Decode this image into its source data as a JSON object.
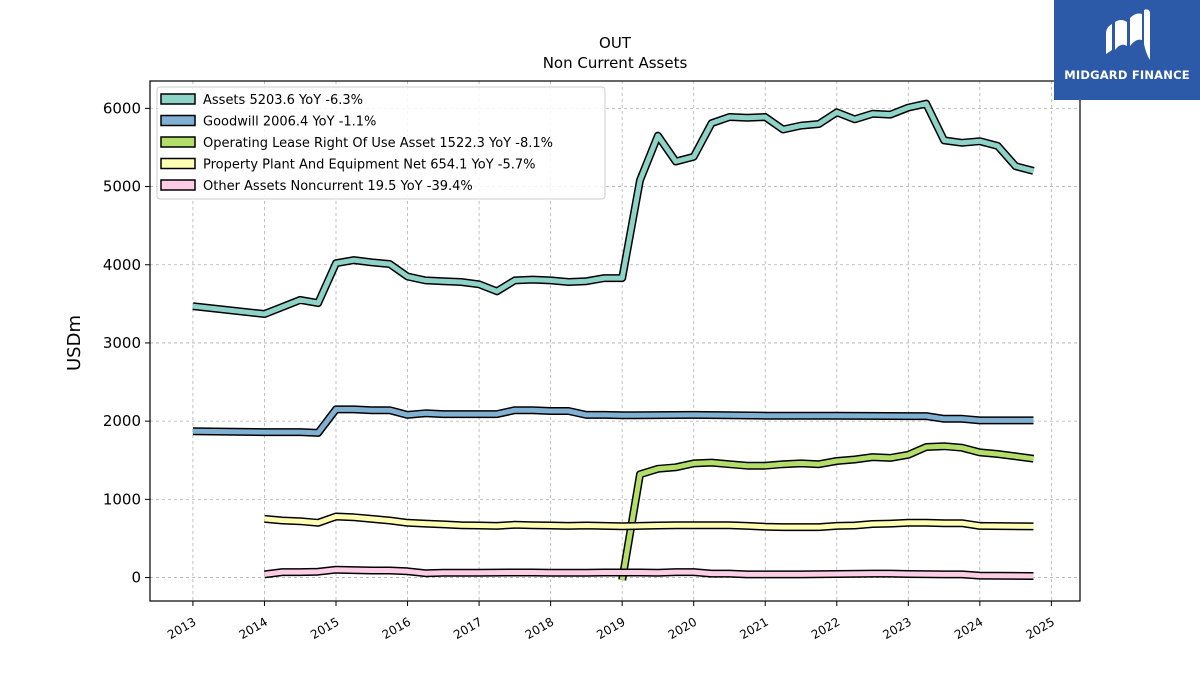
{
  "chart_data": {
    "type": "line",
    "title": "OUT",
    "subtitle": "Non Current  Assets",
    "ylabel": "USDm",
    "xlabel": "",
    "xlim": [
      2012.4,
      2025.4
    ],
    "ylim": [
      -300,
      6350
    ],
    "x_ticks": [
      "2013",
      "2014",
      "2015",
      "2016",
      "2017",
      "2018",
      "2019",
      "2020",
      "2021",
      "2022",
      "2023",
      "2024",
      "2025"
    ],
    "y_ticks": [
      "0",
      "1000",
      "2000",
      "3000",
      "4000",
      "5000",
      "6000"
    ],
    "grid": true,
    "legend_position": "top-left",
    "series": [
      {
        "name": "Assets  5203.6 YoY -6.3%",
        "color": "#8dd3c7",
        "points": [
          [
            2013.0,
            3470
          ],
          [
            2014.0,
            3370
          ],
          [
            2014.25,
            3460
          ],
          [
            2014.5,
            3550
          ],
          [
            2014.75,
            3510
          ],
          [
            2015.0,
            4020
          ],
          [
            2015.25,
            4060
          ],
          [
            2015.5,
            4030
          ],
          [
            2015.75,
            4010
          ],
          [
            2016.0,
            3850
          ],
          [
            2016.25,
            3800
          ],
          [
            2016.5,
            3790
          ],
          [
            2016.75,
            3780
          ],
          [
            2017.0,
            3750
          ],
          [
            2017.25,
            3660
          ],
          [
            2017.5,
            3800
          ],
          [
            2017.75,
            3810
          ],
          [
            2018.0,
            3800
          ],
          [
            2018.25,
            3780
          ],
          [
            2018.5,
            3790
          ],
          [
            2018.75,
            3830
          ],
          [
            2019.0,
            3830
          ],
          [
            2019.25,
            5080
          ],
          [
            2019.5,
            5650
          ],
          [
            2019.75,
            5320
          ],
          [
            2020.0,
            5380
          ],
          [
            2020.25,
            5810
          ],
          [
            2020.5,
            5890
          ],
          [
            2020.75,
            5880
          ],
          [
            2021.0,
            5890
          ],
          [
            2021.25,
            5730
          ],
          [
            2021.5,
            5780
          ],
          [
            2021.75,
            5800
          ],
          [
            2022.0,
            5950
          ],
          [
            2022.25,
            5860
          ],
          [
            2022.5,
            5930
          ],
          [
            2022.75,
            5920
          ],
          [
            2023.0,
            6010
          ],
          [
            2023.25,
            6060
          ],
          [
            2023.5,
            5590
          ],
          [
            2023.75,
            5560
          ],
          [
            2024.0,
            5580
          ],
          [
            2024.25,
            5520
          ],
          [
            2024.5,
            5260
          ],
          [
            2024.75,
            5200
          ]
        ]
      },
      {
        "name": "Goodwill  2006.4 YoY -1.1%",
        "color": "#80b1d3",
        "points": [
          [
            2013.0,
            1870
          ],
          [
            2014.0,
            1860
          ],
          [
            2014.5,
            1860
          ],
          [
            2014.75,
            1850
          ],
          [
            2015.0,
            2150
          ],
          [
            2015.25,
            2150
          ],
          [
            2015.5,
            2140
          ],
          [
            2015.75,
            2140
          ],
          [
            2016.0,
            2080
          ],
          [
            2016.25,
            2100
          ],
          [
            2016.5,
            2090
          ],
          [
            2016.75,
            2090
          ],
          [
            2017.0,
            2090
          ],
          [
            2017.25,
            2090
          ],
          [
            2017.5,
            2140
          ],
          [
            2017.75,
            2140
          ],
          [
            2018.0,
            2130
          ],
          [
            2018.25,
            2130
          ],
          [
            2018.5,
            2080
          ],
          [
            2018.75,
            2080
          ],
          [
            2019.0,
            2075
          ],
          [
            2020.0,
            2080
          ],
          [
            2020.5,
            2075
          ],
          [
            2021.0,
            2070
          ],
          [
            2022.0,
            2070
          ],
          [
            2023.0,
            2065
          ],
          [
            2023.25,
            2065
          ],
          [
            2023.5,
            2030
          ],
          [
            2023.75,
            2030
          ],
          [
            2024.0,
            2010
          ],
          [
            2024.75,
            2010
          ]
        ]
      },
      {
        "name": "Operating Lease Right Of Use Asset  1522.3 YoY -8.1%",
        "color": "#b3de69",
        "points": [
          [
            2019.0,
            -30
          ],
          [
            2019.25,
            1320
          ],
          [
            2019.5,
            1390
          ],
          [
            2019.75,
            1410
          ],
          [
            2020.0,
            1460
          ],
          [
            2020.25,
            1470
          ],
          [
            2020.5,
            1450
          ],
          [
            2020.75,
            1430
          ],
          [
            2021.0,
            1430
          ],
          [
            2021.25,
            1450
          ],
          [
            2021.5,
            1460
          ],
          [
            2021.75,
            1450
          ],
          [
            2022.0,
            1490
          ],
          [
            2022.25,
            1510
          ],
          [
            2022.5,
            1540
          ],
          [
            2022.75,
            1530
          ],
          [
            2023.0,
            1570
          ],
          [
            2023.25,
            1670
          ],
          [
            2023.5,
            1680
          ],
          [
            2023.75,
            1660
          ],
          [
            2024.0,
            1600
          ],
          [
            2024.25,
            1580
          ],
          [
            2024.5,
            1550
          ],
          [
            2024.75,
            1520
          ]
        ]
      },
      {
        "name": "Property Plant And Equipment Net  654.1 YoY -5.7%",
        "color": "#ffffb3",
        "points": [
          [
            2014.0,
            750
          ],
          [
            2014.25,
            730
          ],
          [
            2014.5,
            720
          ],
          [
            2014.75,
            700
          ],
          [
            2015.0,
            780
          ],
          [
            2015.25,
            770
          ],
          [
            2015.5,
            750
          ],
          [
            2015.75,
            730
          ],
          [
            2016.0,
            700
          ],
          [
            2016.25,
            690
          ],
          [
            2016.5,
            680
          ],
          [
            2016.75,
            670
          ],
          [
            2017.0,
            665
          ],
          [
            2017.25,
            660
          ],
          [
            2017.5,
            675
          ],
          [
            2017.75,
            670
          ],
          [
            2018.0,
            665
          ],
          [
            2018.25,
            660
          ],
          [
            2018.5,
            665
          ],
          [
            2018.75,
            660
          ],
          [
            2019.0,
            655
          ],
          [
            2019.25,
            660
          ],
          [
            2019.5,
            665
          ],
          [
            2019.75,
            670
          ],
          [
            2020.0,
            670
          ],
          [
            2020.5,
            670
          ],
          [
            2020.75,
            660
          ],
          [
            2021.0,
            650
          ],
          [
            2021.25,
            645
          ],
          [
            2021.5,
            645
          ],
          [
            2021.75,
            645
          ],
          [
            2022.0,
            660
          ],
          [
            2022.25,
            665
          ],
          [
            2022.5,
            685
          ],
          [
            2022.75,
            690
          ],
          [
            2023.0,
            700
          ],
          [
            2023.25,
            700
          ],
          [
            2023.5,
            695
          ],
          [
            2023.75,
            695
          ],
          [
            2024.0,
            660
          ],
          [
            2024.75,
            654
          ]
        ]
      },
      {
        "name": "Other Assets Noncurrent  19.5 YoY -39.4%",
        "color": "#fccde5",
        "points": [
          [
            2014.0,
            40
          ],
          [
            2014.25,
            70
          ],
          [
            2014.5,
            70
          ],
          [
            2014.75,
            75
          ],
          [
            2015.0,
            100
          ],
          [
            2015.25,
            95
          ],
          [
            2015.5,
            90
          ],
          [
            2015.75,
            90
          ],
          [
            2016.0,
            80
          ],
          [
            2016.25,
            55
          ],
          [
            2016.5,
            60
          ],
          [
            2016.75,
            60
          ],
          [
            2017.0,
            60
          ],
          [
            2017.5,
            65
          ],
          [
            2017.75,
            65
          ],
          [
            2018.0,
            60
          ],
          [
            2018.5,
            60
          ],
          [
            2018.75,
            65
          ],
          [
            2019.0,
            65
          ],
          [
            2019.25,
            65
          ],
          [
            2019.5,
            60
          ],
          [
            2019.75,
            70
          ],
          [
            2020.0,
            70
          ],
          [
            2020.25,
            50
          ],
          [
            2020.5,
            50
          ],
          [
            2020.75,
            40
          ],
          [
            2021.0,
            40
          ],
          [
            2021.5,
            40
          ],
          [
            2022.0,
            45
          ],
          [
            2022.5,
            50
          ],
          [
            2022.75,
            50
          ],
          [
            2023.0,
            45
          ],
          [
            2023.5,
            40
          ],
          [
            2023.75,
            40
          ],
          [
            2024.0,
            25
          ],
          [
            2024.75,
            20
          ]
        ]
      }
    ]
  },
  "logo": {
    "text": "MIDGARD FINANCE",
    "color": "#2c5aa8"
  }
}
